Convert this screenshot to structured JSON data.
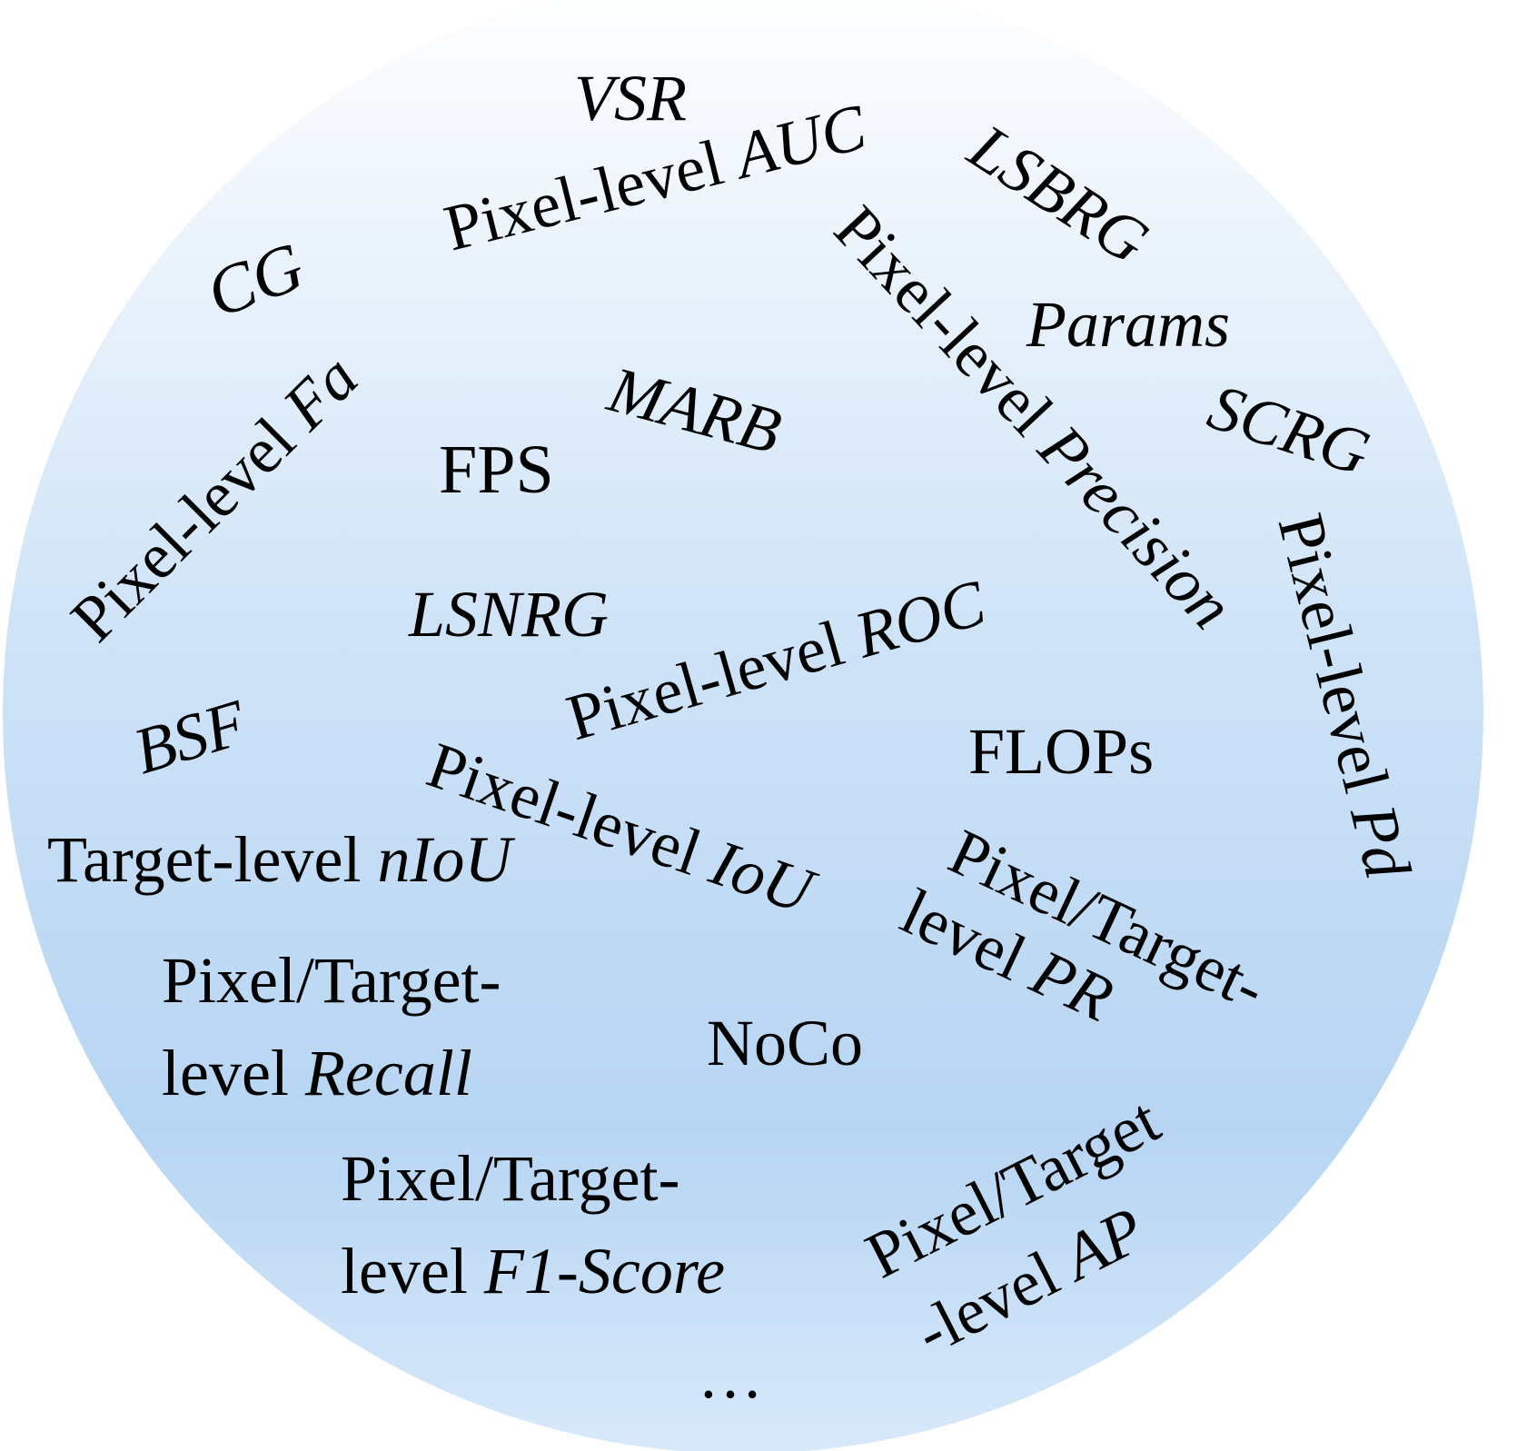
{
  "colors": {
    "circle_top": "#ffffff",
    "circle_mid": "#cfe3f7",
    "circle_lower": "#b7d5f3",
    "circle_bottom": "#d8e9fa",
    "text": "#000000"
  },
  "terms": {
    "vsr": "VSR",
    "auc_prefix": "Pixel-level ",
    "auc_metric": "AUC",
    "lsbrg": "LSBRG",
    "cg": "CG",
    "params": "Params",
    "fa_prefix": "Pixel-level ",
    "fa_metric": "Fa",
    "marb": "MARB",
    "precision_prefix": "Pixel-level ",
    "precision_metric": "Precision",
    "scrg": "SCRG",
    "fps": "FPS",
    "pd_prefix": "Pixel-level ",
    "pd_metric": "Pd",
    "lsnrg": "LSNRG",
    "roc_prefix": "Pixel-level ",
    "roc_metric": "ROC",
    "bsf": "BSF",
    "flops": "FLOPs",
    "iou_prefix": "Pixel-level ",
    "iou_metric": "IoU",
    "niou_prefix": "Target-level ",
    "niou_metric": "nIoU",
    "pr_line1": "Pixel/Target-",
    "pr_line2_prefix": "level ",
    "pr_metric": "PR",
    "recall_line1": "Pixel/Target-",
    "recall_line2_prefix": "level ",
    "recall_metric": "Recall",
    "noco": "NoCo",
    "f1_line1": "Pixel/Target-",
    "f1_line2_prefix": "level ",
    "f1_metric": "F1-Score",
    "ap_line1": "Pixel/Target",
    "ap_line2_prefix": "-level ",
    "ap_metric": "AP",
    "ellipsis": "…"
  }
}
